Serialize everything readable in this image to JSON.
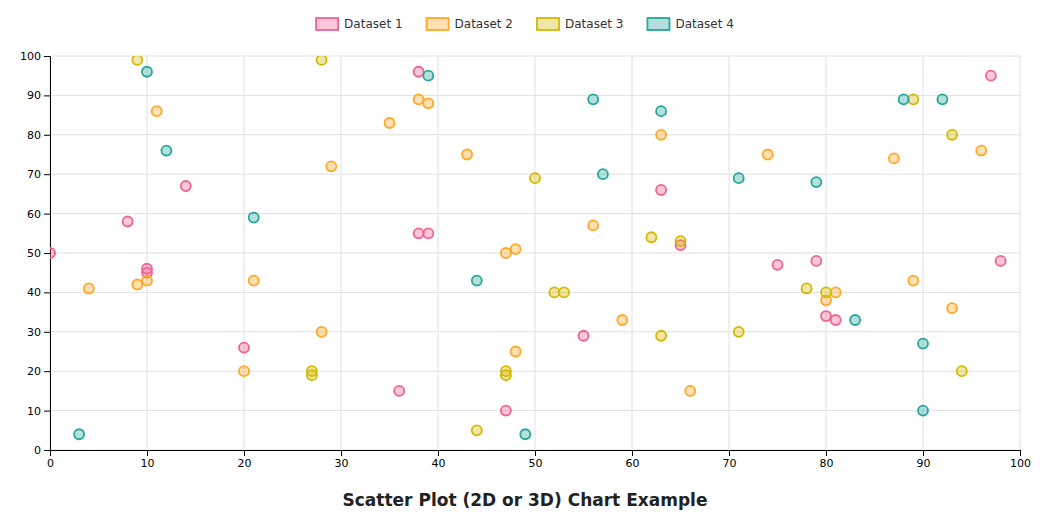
{
  "chart_data": {
    "type": "scatter",
    "title": "Scatter Plot (2D or 3D) Chart Example",
    "series": [
      {
        "name": "Dataset 1",
        "color": "#F06292",
        "x": [
          0,
          8,
          10,
          10,
          14,
          20,
          36,
          38,
          38,
          39,
          47,
          55,
          63,
          65,
          75,
          79,
          80,
          81,
          97,
          98
        ],
        "values": [
          50,
          58,
          45,
          46,
          67,
          26,
          15,
          96,
          55,
          55,
          10,
          29,
          66,
          52,
          47,
          48,
          34,
          33,
          95,
          48
        ]
      },
      {
        "name": "Dataset 2",
        "color": "#FFA726",
        "x": [
          4,
          9,
          10,
          11,
          20,
          21,
          28,
          29,
          35,
          38,
          39,
          43,
          47,
          48,
          48,
          56,
          59,
          63,
          66,
          74,
          80,
          81,
          87,
          89,
          93,
          96
        ],
        "values": [
          41,
          42,
          43,
          86,
          20,
          43,
          30,
          72,
          83,
          89,
          88,
          75,
          50,
          25,
          51,
          57,
          33,
          80,
          15,
          75,
          38,
          40,
          74,
          43,
          36,
          76
        ]
      },
      {
        "name": "Dataset 3",
        "color": "#D4B800",
        "x": [
          9,
          27,
          27,
          28,
          44,
          47,
          47,
          50,
          52,
          53,
          62,
          63,
          65,
          71,
          78,
          80,
          89,
          93,
          94
        ],
        "values": [
          99,
          19,
          20,
          99,
          5,
          19,
          20,
          69,
          40,
          40,
          54,
          29,
          53,
          30,
          41,
          40,
          89,
          80,
          20
        ]
      },
      {
        "name": "Dataset 4",
        "color": "#26A69A",
        "x": [
          3,
          10,
          12,
          21,
          39,
          44,
          49,
          56,
          57,
          63,
          71,
          79,
          83,
          88,
          90,
          92,
          90
        ],
        "values": [
          4,
          96,
          76,
          59,
          95,
          43,
          4,
          89,
          70,
          86,
          69,
          68,
          33,
          89,
          10,
          89,
          27
        ]
      }
    ],
    "xlim": [
      0,
      100
    ],
    "ylim": [
      0,
      100
    ],
    "xticks": [
      0,
      10,
      20,
      30,
      40,
      50,
      60,
      70,
      80,
      90,
      100
    ],
    "yticks": [
      0,
      10,
      20,
      30,
      40,
      50,
      60,
      70,
      80,
      90,
      100
    ],
    "grid": true,
    "legend": "top"
  }
}
